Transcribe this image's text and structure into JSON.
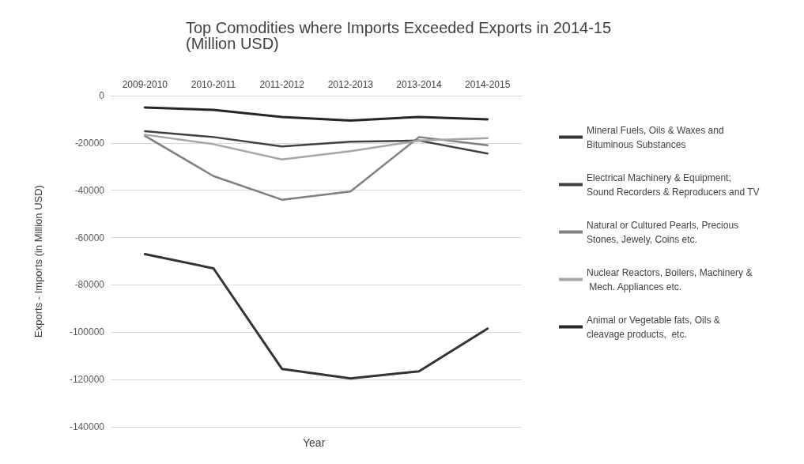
{
  "chart_data": {
    "type": "line",
    "title": "Top Comodities where Imports Exceeded Exports in 2014-15 (Million USD)",
    "xlabel": "Year",
    "ylabel": "Exports - Imports (in Million USD)",
    "categories": [
      "2009-2010",
      "2010-2011",
      "2011-2012",
      "2012-2013",
      "2013-2014",
      "2014-2015"
    ],
    "series": [
      {
        "name": "Mineral Fuels, Oils & Waxes and Bituminous Substances",
        "color": "#333333",
        "values": [
          -67000,
          -73000,
          -115500,
          -119500,
          -116500,
          -98500
        ]
      },
      {
        "name": "Electrical Machinery & Equipment; Sound Recorders & Reproducers and TV",
        "color": "#404040",
        "values": [
          -15000,
          -17500,
          -21500,
          -19500,
          -19000,
          -24500
        ]
      },
      {
        "name": "Natural or Cultured Pearls, Precious Stones, Jewely, Coins etc.",
        "color": "#7f7f7f",
        "values": [
          -17000,
          -34000,
          -44000,
          -40500,
          -17500,
          -21000
        ]
      },
      {
        "name": "Nuclear Reactors, Boilers, Machinery & Mech. Appliances etc.",
        "color": "#a6a6a6",
        "values": [
          -16500,
          -20500,
          -27000,
          -23500,
          -19000,
          -18000
        ]
      },
      {
        "name": "Animal or Vegetable fats, Oils & cleavage products,  etc.",
        "color": "#262626",
        "values": [
          -5000,
          -6000,
          -9000,
          -10500,
          -9000,
          -10000
        ]
      }
    ],
    "ylim": [
      -140000,
      0
    ],
    "yticks": [
      -140000,
      -120000,
      -100000,
      -80000,
      -60000,
      -40000,
      -20000,
      0
    ],
    "grid": "y",
    "legend": "right",
    "marker": "none",
    "line_style": "solid"
  }
}
